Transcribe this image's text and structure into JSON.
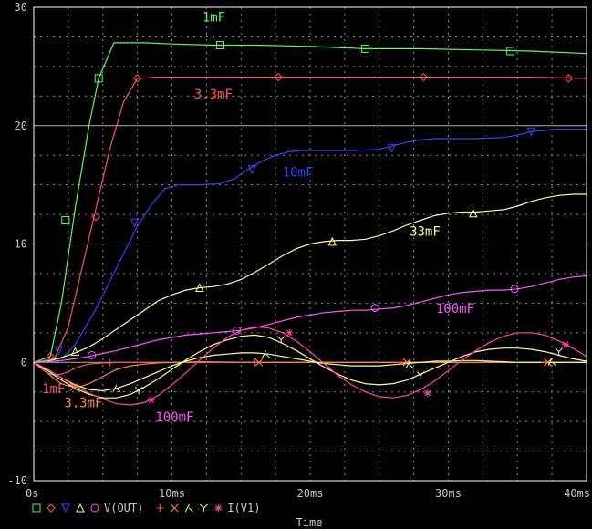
{
  "chart_data": {
    "type": "line",
    "xlabel": "Time",
    "x_unit": "ms",
    "xlim": [
      0,
      40
    ],
    "ylim": [
      -10,
      30
    ],
    "x_ticks": [
      "0s",
      "10ms",
      "20ms",
      "30ms",
      "40ms"
    ],
    "x_tick_values": [
      0,
      10,
      20,
      30,
      40
    ],
    "y_ticks": [
      "-10",
      "0",
      "10",
      "20",
      "30"
    ],
    "y_tick_values": [
      -10,
      0,
      10,
      20,
      30
    ],
    "grid": true,
    "legend": {
      "placement": "bottom-left",
      "groups": [
        {
          "label": "V(OUT)",
          "markers": [
            "square",
            "diamond",
            "triangle-down",
            "triangle-up",
            "circle"
          ],
          "colors": [
            "#55ff55",
            "#ff5555",
            "#3344ff",
            "#ffff88",
            "#ff55ff"
          ]
        },
        {
          "label": "I(V1)",
          "markers": [
            "plus",
            "x",
            "lambda",
            "y",
            "asterisk"
          ],
          "colors": [
            "#ff5555",
            "#ff8844",
            "#ffff88",
            "#ffff88",
            "#ff44aa"
          ]
        }
      ]
    },
    "annotations": [
      {
        "text": "1mF",
        "x": 12.2,
        "y": 28.8,
        "color": "#55ff55"
      },
      {
        "text": "3.3mF",
        "x": 11.6,
        "y": 22.3,
        "color": "#ff5555"
      },
      {
        "text": "10mF",
        "x": 18.0,
        "y": 15.7,
        "color": "#3344ff"
      },
      {
        "text": "33mF",
        "x": 27.2,
        "y": 10.7,
        "color": "#ffff88"
      },
      {
        "text": "100mF",
        "x": 29.1,
        "y": 4.2,
        "color": "#ff55ff"
      },
      {
        "text": "1mF",
        "x": 0.6,
        "y": -2.6,
        "color": "#ff5555"
      },
      {
        "text": "3.3mF",
        "x": 2.2,
        "y": -3.8,
        "color": "#ff8844"
      },
      {
        "text": "100mF",
        "x": 8.8,
        "y": -5.0,
        "color": "#ff55ff"
      }
    ],
    "series": [
      {
        "color": "#55ff55",
        "marker": "square",
        "x": [
          0,
          1.2,
          2.0,
          3.0,
          4.0,
          4.7,
          5.8,
          8,
          10,
          13,
          16,
          20,
          24,
          28,
          32,
          36,
          40
        ],
        "y": [
          0,
          0.5,
          5,
          13,
          20,
          24,
          27,
          27,
          26.9,
          26.8,
          26.8,
          26.7,
          26.5,
          26.5,
          26.4,
          26.3,
          26.1
        ],
        "mx": [
          2.3,
          4.7,
          13.5,
          24.0,
          34.5
        ],
        "my": [
          12,
          24,
          26.8,
          26.5,
          26.3
        ]
      },
      {
        "color": "#ff5555",
        "marker": "diamond",
        "x": [
          0,
          1.5,
          2.5,
          3.5,
          4.5,
          5.5,
          6.5,
          7.5,
          9,
          12,
          16,
          20,
          24,
          28,
          32,
          36,
          40
        ],
        "y": [
          0,
          0.3,
          3,
          8,
          13,
          18,
          22,
          24,
          24.1,
          24.1,
          24.1,
          24.1,
          24.1,
          24.1,
          24.1,
          24.1,
          24.0
        ],
        "mx": [
          1.2,
          4.5,
          7.5,
          17.7,
          28.2,
          38.7
        ],
        "my": [
          0.5,
          12.3,
          24,
          24.1,
          24.1,
          24.0
        ],
        "m2x": [],
        "m2y": []
      },
      {
        "color": "#3344ff",
        "marker": "triangle-down",
        "x": [
          0,
          2,
          3,
          4.5,
          6,
          7.5,
          8.5,
          9.5,
          10.5,
          12,
          13.5,
          14.5,
          15.5,
          16.5,
          17.5,
          18.5,
          19.5,
          21,
          23,
          25,
          26,
          27,
          28,
          29,
          30,
          32,
          34,
          35,
          36,
          38,
          40
        ],
        "y": [
          0,
          0.3,
          1.5,
          4.5,
          8,
          11.5,
          13.3,
          14.7,
          15.0,
          15.0,
          15.1,
          15.5,
          16.3,
          17.0,
          17.5,
          17.8,
          17.9,
          17.9,
          17.9,
          18.0,
          18.3,
          18.6,
          18.8,
          18.9,
          18.9,
          18.9,
          19.0,
          19.2,
          19.5,
          19.7,
          19.7
        ],
        "mx": [
          1.8,
          7.3,
          15.8,
          25.9,
          36.0
        ],
        "my": [
          1.0,
          11.8,
          16.3,
          18.1,
          19.5
        ]
      },
      {
        "color": "#ffff88",
        "marker": "triangle-up",
        "x": [
          0,
          1,
          2,
          3,
          4,
          5,
          6,
          7,
          8,
          9,
          10,
          11,
          12,
          13,
          14,
          15,
          16,
          17,
          18,
          19,
          20,
          21,
          22,
          23,
          24,
          25,
          26,
          27,
          28,
          29,
          30,
          31,
          32,
          33,
          34,
          35,
          36,
          37,
          38,
          39,
          40
        ],
        "y": [
          0,
          0.1,
          0.4,
          0.8,
          1.3,
          2.0,
          2.8,
          3.6,
          4.4,
          5.2,
          5.7,
          6.1,
          6.3,
          6.4,
          6.6,
          7.0,
          7.6,
          8.3,
          9.0,
          9.6,
          10.0,
          10.2,
          10.3,
          10.3,
          10.4,
          10.7,
          11.1,
          11.6,
          12.0,
          12.4,
          12.6,
          12.7,
          12.7,
          12.8,
          12.9,
          13.2,
          13.6,
          13.9,
          14.1,
          14.2,
          14.2
        ],
        "mx": [
          3.0,
          12.0,
          21.6,
          31.8
        ],
        "my": [
          0.9,
          6.3,
          10.2,
          12.6
        ]
      },
      {
        "color": "#ff55ff",
        "marker": "circle",
        "x": [
          0,
          1,
          2,
          3,
          4,
          5,
          6,
          7,
          8,
          9,
          10,
          11,
          12,
          13,
          14,
          15,
          16,
          17,
          18,
          19,
          20,
          21,
          22,
          23,
          24,
          25,
          26,
          27,
          28,
          29,
          30,
          31,
          32,
          33,
          34,
          35,
          36,
          37,
          38,
          39,
          40
        ],
        "y": [
          0,
          0.05,
          0.15,
          0.3,
          0.5,
          0.75,
          1.0,
          1.3,
          1.6,
          1.9,
          2.1,
          2.3,
          2.4,
          2.5,
          2.6,
          2.7,
          2.9,
          3.2,
          3.5,
          3.8,
          4.0,
          4.2,
          4.3,
          4.4,
          4.4,
          4.5,
          4.6,
          4.8,
          5.1,
          5.4,
          5.7,
          5.9,
          6.0,
          6.1,
          6.1,
          6.2,
          6.4,
          6.7,
          7.0,
          7.2,
          7.3
        ],
        "mx": [
          4.2,
          14.7,
          24.7,
          34.8
        ],
        "my": [
          0.6,
          2.7,
          4.6,
          6.2
        ]
      },
      {
        "color": "#ff5555",
        "marker": "plus",
        "x": [
          0,
          0.5,
          1,
          1.5,
          2,
          2.5,
          3,
          3.5,
          4,
          5,
          6,
          7,
          8,
          10,
          15,
          20,
          25,
          30,
          35,
          40
        ],
        "y": [
          0,
          -0.5,
          -0.9,
          -1.1,
          -1.0,
          -0.8,
          -0.5,
          -0.3,
          -0.15,
          -0.05,
          0,
          0,
          0,
          0,
          0,
          0,
          0,
          0,
          0,
          0
        ],
        "mx": [
          5.5,
          16.0,
          26.5,
          37.0
        ],
        "my": [
          -0.05,
          0,
          0,
          0
        ]
      },
      {
        "color": "#ff8844",
        "marker": "x",
        "x": [
          0,
          0.5,
          1,
          1.5,
          2,
          2.5,
          3,
          3.5,
          4,
          4.5,
          5,
          5.5,
          6,
          7,
          8,
          9,
          10,
          12,
          15,
          20,
          25,
          30,
          35,
          40
        ],
        "y": [
          0,
          -0.4,
          -0.9,
          -1.4,
          -1.8,
          -2.0,
          -2.1,
          -2.0,
          -1.8,
          -1.5,
          -1.2,
          -0.9,
          -0.6,
          -0.3,
          -0.15,
          -0.05,
          0,
          0.05,
          0,
          0,
          0,
          0,
          0,
          0
        ],
        "mx": [
          2.9,
          16.3,
          27.0,
          37.2
        ],
        "my": [
          -2.1,
          0,
          0,
          0
        ]
      },
      {
        "color": "#ffff88",
        "marker": "lambda",
        "x": [
          0,
          1,
          2,
          3,
          4,
          5,
          6,
          7,
          8,
          9,
          10,
          11,
          12,
          13,
          14,
          15,
          16,
          17,
          18,
          19,
          20,
          21,
          22,
          23,
          24,
          25,
          26,
          27,
          28,
          29,
          30,
          31,
          32,
          33,
          34,
          35,
          36,
          37,
          38,
          39,
          40
        ],
        "y": [
          0,
          -0.6,
          -1.3,
          -1.9,
          -2.3,
          -2.4,
          -2.2,
          -1.8,
          -1.3,
          -0.8,
          -0.3,
          0.1,
          0.4,
          0.6,
          0.7,
          0.8,
          0.8,
          0.7,
          0.5,
          0.3,
          0.1,
          -0.1,
          -0.2,
          -0.3,
          -0.3,
          -0.3,
          -0.2,
          -0.1,
          0,
          0.1,
          0.1,
          0.15,
          0.15,
          0.1,
          0.05,
          0,
          0,
          0,
          0,
          0,
          0
        ],
        "mx": [
          6.0,
          16.8,
          27.2,
          37.5
        ],
        "my": [
          -2.2,
          0.7,
          -0.2,
          0.05
        ]
      },
      {
        "color": "#ffff88",
        "marker": "y",
        "x": [
          0,
          1,
          2,
          3,
          4,
          5,
          6,
          7,
          8,
          9,
          10,
          11,
          12,
          13,
          14,
          15,
          16,
          17,
          18,
          19,
          20,
          21,
          22,
          23,
          24,
          25,
          26,
          27,
          28,
          29,
          30,
          31,
          32,
          33,
          34,
          35,
          36,
          37,
          38,
          39,
          40
        ],
        "y": [
          0,
          -0.7,
          -1.5,
          -2.2,
          -2.7,
          -3.0,
          -3.0,
          -2.7,
          -2.1,
          -1.4,
          -0.6,
          0.2,
          0.9,
          1.5,
          1.9,
          2.2,
          2.3,
          2.1,
          1.6,
          1.0,
          0.3,
          -0.4,
          -1.0,
          -1.5,
          -1.8,
          -1.9,
          -1.8,
          -1.5,
          -1.0,
          -0.5,
          0,
          0.5,
          0.9,
          1.1,
          1.2,
          1.2,
          1.1,
          0.9,
          0.6,
          0.3,
          0.1
        ],
        "mx": [
          7.6,
          17.9,
          28.0,
          38.0
        ],
        "my": [
          -2.4,
          1.9,
          -1.1,
          0.9
        ]
      },
      {
        "color": "#ff44aa",
        "marker": "asterisk",
        "x": [
          0,
          1,
          2,
          3,
          4,
          5,
          6,
          7,
          8,
          9,
          10,
          11,
          12,
          13,
          14,
          15,
          16,
          17,
          18,
          19,
          20,
          21,
          22,
          23,
          24,
          25,
          26,
          27,
          28,
          29,
          30,
          31,
          32,
          33,
          34,
          35,
          36,
          37,
          38,
          39,
          40
        ],
        "y": [
          0,
          -0.6,
          -1.3,
          -2.0,
          -2.6,
          -3.1,
          -3.5,
          -3.6,
          -3.4,
          -2.8,
          -1.9,
          -0.9,
          0.2,
          1.2,
          2.1,
          2.7,
          3.0,
          2.9,
          2.5,
          1.8,
          0.9,
          -0.1,
          -1.1,
          -1.9,
          -2.5,
          -2.9,
          -3.0,
          -2.8,
          -2.3,
          -1.6,
          -0.7,
          0.2,
          1.0,
          1.7,
          2.2,
          2.5,
          2.5,
          2.3,
          1.8,
          1.2,
          0.5
        ],
        "mx": [
          8.5,
          18.5,
          28.5,
          38.5
        ],
        "my": [
          -3.2,
          2.5,
          -2.6,
          1.5
        ]
      }
    ]
  }
}
